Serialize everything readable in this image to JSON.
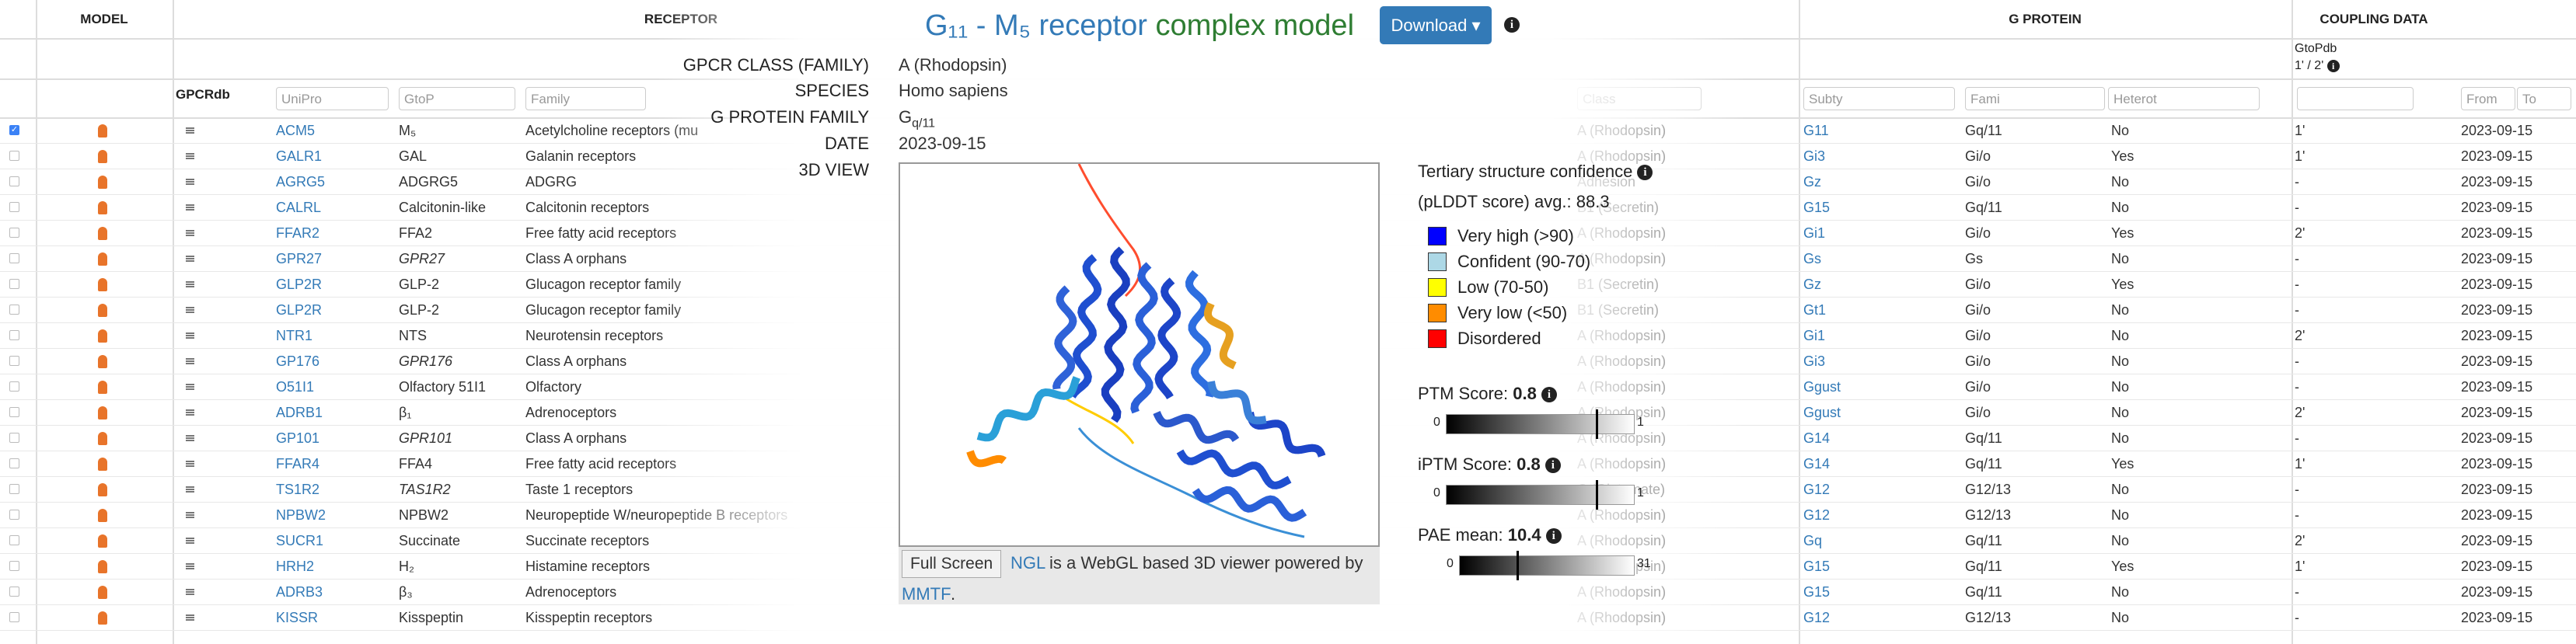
{
  "table": {
    "group_headers": {
      "model": "MODEL",
      "receptor": "RECEPTOR",
      "gprotein": "G PROTEIN",
      "coupling": "COUPLING DATA"
    },
    "gpcrdb": "GPCRdb",
    "gtopdb_header": "GtoPdb",
    "gtopdb_sub": "1' / 2'",
    "filters": {
      "uniprot": "UniPro",
      "gtop": "GtoP",
      "family": "Family",
      "class": "Class",
      "subtype": "Subty",
      "gfamily": "Fami",
      "hetero": "Heterot",
      "from": "From",
      "to": "To"
    },
    "rows": [
      {
        "checked": true,
        "uniprot": "ACM5",
        "gtop": "M₅",
        "family": "Acetylcholine receptors (mu",
        "class": "A (Rhodopsin)",
        "subtype": "G11",
        "gfamily": "Gq/11",
        "hetero": "No",
        "gtopdb": "1'",
        "date": "2023-09-15"
      },
      {
        "uniprot": "GALR1",
        "gtop": "GAL",
        "family": "Galanin receptors",
        "class": "A (Rhodopsin)",
        "subtype": "Gi3",
        "gfamily": "Gi/o",
        "hetero": "Yes",
        "gtopdb": "1'",
        "date": "2023-09-15"
      },
      {
        "uniprot": "AGRG5",
        "gtop": "ADGRG5",
        "family": "ADGRG",
        "class": "Adhesion",
        "subtype": "Gz",
        "gfamily": "Gi/o",
        "hetero": "No",
        "gtopdb": "-",
        "date": "2023-09-15"
      },
      {
        "uniprot": "CALRL",
        "gtop": "Calcitonin-like",
        "family": "Calcitonin receptors",
        "class": "B1 (Secretin)",
        "subtype": "G15",
        "gfamily": "Gq/11",
        "hetero": "No",
        "gtopdb": "-",
        "date": "2023-09-15"
      },
      {
        "uniprot": "FFAR2",
        "gtop": "FFA2",
        "family": "Free fatty acid receptors",
        "class": "A (Rhodopsin)",
        "subtype": "Gi1",
        "gfamily": "Gi/o",
        "hetero": "Yes",
        "gtopdb": "2'",
        "date": "2023-09-15"
      },
      {
        "uniprot": "GPR27",
        "gtop": "GPR27",
        "gtop_italic": true,
        "family": "Class A orphans",
        "class": "A (Rhodopsin)",
        "subtype": "Gs",
        "gfamily": "Gs",
        "hetero": "No",
        "gtopdb": "-",
        "date": "2023-09-15"
      },
      {
        "uniprot": "GLP2R",
        "gtop": "GLP-2",
        "family": "Glucagon receptor family",
        "class": "B1 (Secretin)",
        "subtype": "Gz",
        "gfamily": "Gi/o",
        "hetero": "Yes",
        "gtopdb": "-",
        "date": "2023-09-15"
      },
      {
        "uniprot": "GLP2R",
        "gtop": "GLP-2",
        "family": "Glucagon receptor family",
        "class": "B1 (Secretin)",
        "subtype": "Gt1",
        "gfamily": "Gi/o",
        "hetero": "No",
        "gtopdb": "-",
        "date": "2023-09-15"
      },
      {
        "uniprot": "NTR1",
        "gtop": "NTS",
        "family": "Neurotensin receptors",
        "class": "A (Rhodopsin)",
        "subtype": "Gi1",
        "gfamily": "Gi/o",
        "hetero": "No",
        "gtopdb": "2'",
        "date": "2023-09-15"
      },
      {
        "uniprot": "GP176",
        "gtop": "GPR176",
        "gtop_italic": true,
        "family": "Class A orphans",
        "class": "A (Rhodopsin)",
        "subtype": "Gi3",
        "gfamily": "Gi/o",
        "hetero": "No",
        "gtopdb": "-",
        "date": "2023-09-15"
      },
      {
        "uniprot": "O51I1",
        "gtop": "Olfactory 51I1",
        "family": "Olfactory",
        "class": "A (Rhodopsin)",
        "subtype": "Ggust",
        "gfamily": "Gi/o",
        "hetero": "No",
        "gtopdb": "-",
        "date": "2023-09-15"
      },
      {
        "uniprot": "ADRB1",
        "gtop": "β₁",
        "family": "Adrenoceptors",
        "class": "A (Rhodopsin)",
        "subtype": "Ggust",
        "gfamily": "Gi/o",
        "hetero": "No",
        "gtopdb": "2'",
        "date": "2023-09-15"
      },
      {
        "uniprot": "GP101",
        "gtop": "GPR101",
        "gtop_italic": true,
        "family": "Class A orphans",
        "class": "A (Rhodopsin)",
        "subtype": "G14",
        "gfamily": "Gq/11",
        "hetero": "No",
        "gtopdb": "-",
        "date": "2023-09-15"
      },
      {
        "uniprot": "FFAR4",
        "gtop": "FFA4",
        "family": "Free fatty acid receptors",
        "class": "A (Rhodopsin)",
        "subtype": "G14",
        "gfamily": "Gq/11",
        "hetero": "Yes",
        "gtopdb": "1'",
        "date": "2023-09-15"
      },
      {
        "uniprot": "TS1R2",
        "gtop": "TAS1R2",
        "gtop_italic": true,
        "family": "Taste 1 receptors",
        "class": "C (Glutamate)",
        "subtype": "G12",
        "gfamily": "G12/13",
        "hetero": "No",
        "gtopdb": "-",
        "date": "2023-09-15"
      },
      {
        "uniprot": "NPBW2",
        "gtop": "NPBW2",
        "family": "Neuropeptide W/neuropeptide B receptors",
        "class": "A (Rhodopsin)",
        "subtype": "G12",
        "gfamily": "G12/13",
        "hetero": "No",
        "gtopdb": "-",
        "date": "2023-09-15"
      },
      {
        "uniprot": "SUCR1",
        "gtop": "Succinate",
        "family": "Succinate receptors",
        "class": "A (Rhodopsin)",
        "subtype": "Gq",
        "gfamily": "Gq/11",
        "hetero": "No",
        "gtopdb": "2'",
        "date": "2023-09-15"
      },
      {
        "uniprot": "HRH2",
        "gtop": "H₂",
        "family": "Histamine receptors",
        "class": "A (Rhodopsin)",
        "subtype": "G15",
        "gfamily": "Gq/11",
        "hetero": "Yes",
        "gtopdb": "1'",
        "date": "2023-09-15"
      },
      {
        "uniprot": "ADRB3",
        "gtop": "β₃",
        "family": "Adrenoceptors",
        "class": "A (Rhodopsin)",
        "subtype": "G15",
        "gfamily": "Gq/11",
        "hetero": "No",
        "gtopdb": "-",
        "date": "2023-09-15"
      },
      {
        "uniprot": "KISSR",
        "gtop": "Kisspeptin",
        "family": "Kisspeptin receptors",
        "class": "A (Rhodopsin)",
        "subtype": "G12",
        "gfamily": "G12/13",
        "hetero": "No",
        "gtopdb": "-",
        "date": "2023-09-15"
      }
    ]
  },
  "modal": {
    "title_blue": "G₁₁ - M₅ receptor",
    "title_green": "complex model",
    "download": "Download",
    "fields": [
      {
        "label": "GPCR CLASS (FAMILY)",
        "value": "A (Rhodopsin)"
      },
      {
        "label": "SPECIES",
        "value": "Homo sapiens"
      },
      {
        "label": "G PROTEIN FAMILY",
        "value_main": "G",
        "value_sub": "q/11"
      },
      {
        "label": "DATE",
        "value": "2023-09-15"
      },
      {
        "label": "3D VIEW"
      }
    ],
    "fullscreen": "Full Screen",
    "ngl_link": "NGL",
    "ngl_text": "is a WebGL based 3D viewer powered by",
    "mmtf": "MMTF",
    "mmtf_after": ".",
    "confidence": {
      "title": "Tertiary structure confidence",
      "avg_label": "(pLDDT score) avg.:",
      "avg": 88.3,
      "legend": [
        {
          "label": "Very high (>90)",
          "color": "#0000ff"
        },
        {
          "label": "Confident (90-70)",
          "color": "#add8e6"
        },
        {
          "label": "Low (70-50)",
          "color": "#ffff00"
        },
        {
          "label": "Very low (<50)",
          "color": "#ff8c00"
        },
        {
          "label": "Disordered",
          "color": "#ff0000"
        }
      ]
    },
    "scores": [
      {
        "label": "PTM Score:",
        "value": 0.8,
        "min": 0,
        "max": 1
      },
      {
        "label": "iPTM Score:",
        "value": 0.8,
        "min": 0,
        "max": 1
      },
      {
        "label": "PAE mean:",
        "value": 10.4,
        "min": 0,
        "max": 31
      }
    ]
  }
}
